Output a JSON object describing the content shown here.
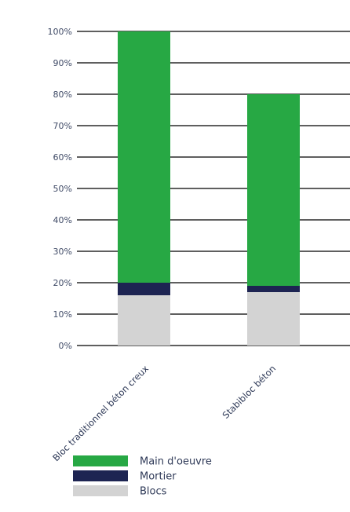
{
  "chart_data": {
    "type": "bar",
    "stacked": true,
    "categories": [
      "Bloc traditionnel béton creux",
      "Stabibloc béton"
    ],
    "series": [
      {
        "name": "Blocs",
        "values": [
          16,
          17
        ],
        "color": "#d3d3d3"
      },
      {
        "name": "Mortier",
        "values": [
          4,
          2
        ],
        "color": "#1d2452"
      },
      {
        "name": "Main d'oeuvre",
        "values": [
          80,
          61
        ],
        "color": "#27a844"
      }
    ],
    "y_ticks": [
      "0%",
      "10%",
      "20%",
      "30%",
      "40%",
      "50%",
      "60%",
      "70%",
      "80%",
      "90%",
      "100%"
    ],
    "ylim": [
      0,
      100
    ],
    "grid": true,
    "legend_position": "bottom-left",
    "legend_order": [
      "Main d'oeuvre",
      "Mortier",
      "Blocs"
    ]
  }
}
